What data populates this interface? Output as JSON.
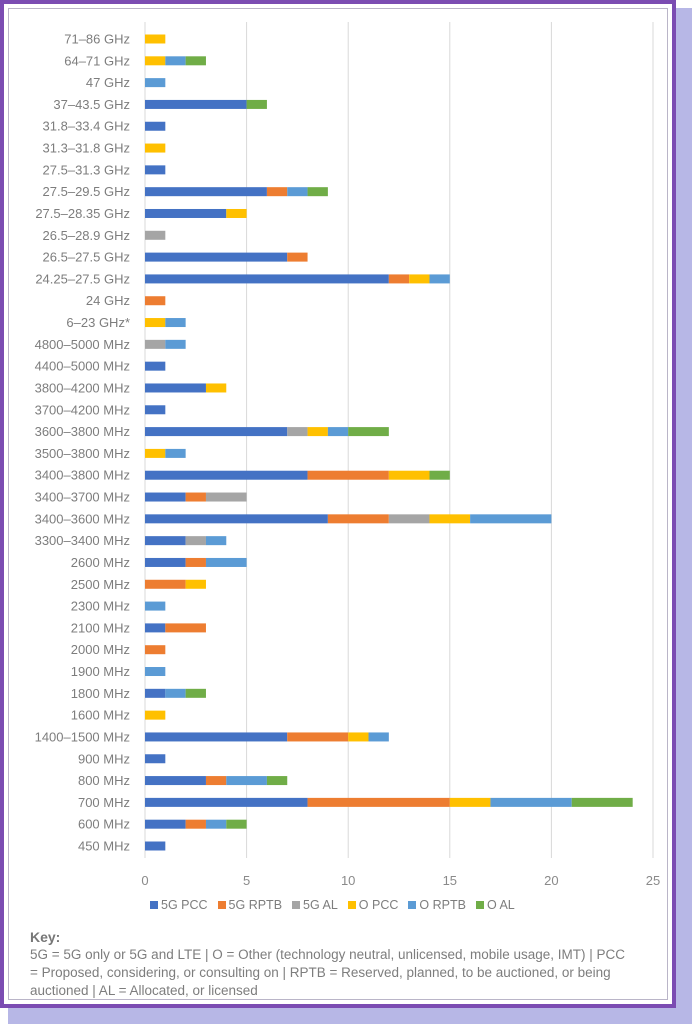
{
  "chart_data": {
    "type": "bar",
    "orientation": "horizontal",
    "stacked": true,
    "title": "",
    "xlabel": "",
    "ylabel": "",
    "xlim": [
      0,
      25
    ],
    "xticks": [
      0,
      5,
      10,
      15,
      20,
      25
    ],
    "grid": true,
    "legend_position": "bottom",
    "categories": [
      "71–86 GHz",
      "64–71 GHz",
      "47 GHz",
      "37–43.5 GHz",
      "31.8–33.4 GHz",
      "31.3–31.8 GHz",
      "27.5–31.3 GHz",
      "27.5–29.5 GHz",
      "27.5–28.35 GHz",
      "26.5–28.9 GHz",
      "26.5–27.5 GHz",
      "24.25–27.5 GHz",
      "24 GHz",
      "6–23 GHz*",
      "4800–5000 MHz",
      "4400–5000 MHz",
      "3800–4200 MHz",
      "3700–4200 MHz",
      "3600–3800 MHz",
      "3500–3800 MHz",
      "3400–3800 MHz",
      "3400–3700 MHz",
      "3400–3600 MHz",
      "3300–3400 MHz",
      "2600 MHz",
      "2500 MHz",
      "2300 MHz",
      "2100 MHz",
      "2000 MHz",
      "1900 MHz",
      "1800 MHz",
      "1600 MHz",
      "1400–1500 MHz",
      "900 MHz",
      "800 MHz",
      "700 MHz",
      "600 MHz",
      "450 MHz"
    ],
    "series": [
      {
        "name": "5G PCC",
        "color": "#4472c4",
        "values": [
          0,
          0,
          0,
          5,
          1,
          0,
          1,
          6,
          4,
          0,
          7,
          12,
          0,
          0,
          0,
          1,
          3,
          1,
          7,
          0,
          8,
          2,
          9,
          2,
          2,
          0,
          0,
          1,
          0,
          0,
          1,
          0,
          7,
          1,
          3,
          8,
          2,
          1
        ]
      },
      {
        "name": "5G RPTB",
        "color": "#ed7d31",
        "values": [
          0,
          0,
          0,
          0,
          0,
          0,
          0,
          1,
          0,
          0,
          1,
          1,
          1,
          0,
          0,
          0,
          0,
          0,
          0,
          0,
          4,
          1,
          3,
          0,
          1,
          2,
          0,
          2,
          1,
          0,
          0,
          0,
          3,
          0,
          1,
          7,
          1,
          0
        ]
      },
      {
        "name": "5G AL",
        "color": "#a5a5a5",
        "values": [
          0,
          0,
          0,
          0,
          0,
          0,
          0,
          0,
          0,
          1,
          0,
          0,
          0,
          0,
          1,
          0,
          0,
          0,
          1,
          0,
          0,
          2,
          2,
          1,
          0,
          0,
          0,
          0,
          0,
          0,
          0,
          0,
          0,
          0,
          0,
          0,
          0,
          0
        ]
      },
      {
        "name": "O PCC",
        "color": "#ffc000",
        "values": [
          1,
          1,
          0,
          0,
          0,
          1,
          0,
          0,
          1,
          0,
          0,
          1,
          0,
          1,
          0,
          0,
          1,
          0,
          1,
          1,
          2,
          0,
          2,
          0,
          0,
          1,
          0,
          0,
          0,
          0,
          0,
          1,
          1,
          0,
          0,
          2,
          0,
          0
        ]
      },
      {
        "name": "O RPTB",
        "color": "#5b9bd5",
        "values": [
          0,
          1,
          1,
          0,
          0,
          0,
          0,
          1,
          0,
          0,
          0,
          1,
          0,
          1,
          1,
          0,
          0,
          0,
          1,
          1,
          0,
          0,
          4,
          1,
          2,
          0,
          1,
          0,
          0,
          1,
          1,
          0,
          1,
          0,
          2,
          4,
          1,
          0
        ]
      },
      {
        "name": "O AL",
        "color": "#70ad47",
        "values": [
          0,
          1,
          0,
          1,
          0,
          0,
          0,
          1,
          0,
          0,
          0,
          0,
          0,
          0,
          0,
          0,
          0,
          0,
          2,
          0,
          1,
          0,
          0,
          0,
          0,
          0,
          0,
          0,
          0,
          0,
          1,
          0,
          0,
          0,
          1,
          3,
          1,
          0
        ]
      }
    ]
  },
  "key": {
    "title": "Key:",
    "text": "5G = 5G only or 5G and LTE | O = Other (technology neutral, unlicensed, mobile usage, IMT) | PCC = Proposed, considering, or consulting on | RPTB = Reserved, planned, to be auctioned, or being auctioned | AL = Allocated, or licensed"
  },
  "colors": {
    "frame_border": "#7b4cb2",
    "frame_shadow": "#b7b7e6"
  }
}
